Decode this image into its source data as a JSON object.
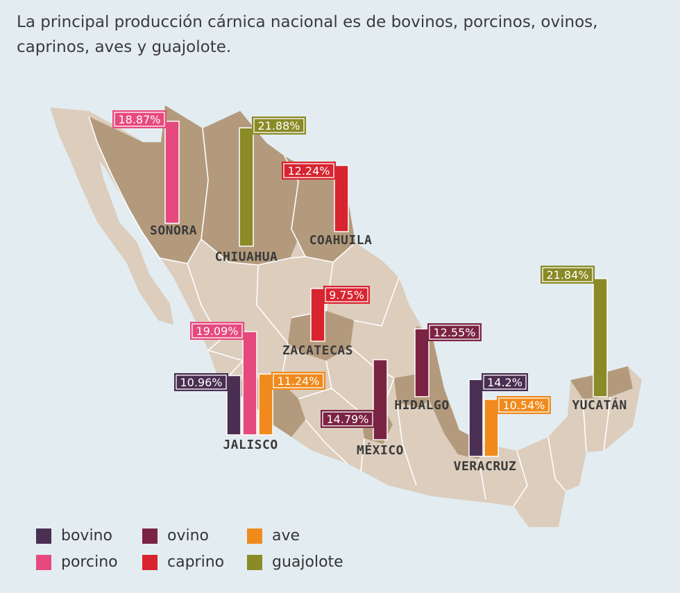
{
  "title": "La principal producción cárnica nacional es de bovinos, porcinos, ovinos, caprinos, aves y guajolote.",
  "colors": {
    "bovino": "#4a2f52",
    "ovino": "#7b2343",
    "ave": "#f08a1c",
    "porcino": "#e6497d",
    "caprino": "#d8242f",
    "guajolote": "#8a8a26",
    "land_light": "#dccdbd",
    "land_dark": "#b39a7c",
    "sea": "#e3edf1"
  },
  "legend": [
    {
      "key": "bovino",
      "label": "bovino"
    },
    {
      "key": "ovino",
      "label": "ovino"
    },
    {
      "key": "ave",
      "label": "ave"
    },
    {
      "key": "porcino",
      "label": "porcino"
    },
    {
      "key": "caprino",
      "label": "caprino"
    },
    {
      "key": "guajolote",
      "label": "guajolote"
    }
  ],
  "states": [
    {
      "name": "SONORA",
      "bars": [
        {
          "type": "porcino",
          "value": 18.87,
          "label": "18.87%"
        }
      ]
    },
    {
      "name": "CHIUAHUA",
      "bars": [
        {
          "type": "guajolote",
          "value": 21.88,
          "label": "21.88%"
        }
      ]
    },
    {
      "name": "COAHUILA",
      "bars": [
        {
          "type": "caprino",
          "value": 12.24,
          "label": "12.24%"
        }
      ]
    },
    {
      "name": "ZACATECAS",
      "bars": [
        {
          "type": "caprino",
          "value": 9.75,
          "label": "9.75%"
        }
      ]
    },
    {
      "name": "JALISCO",
      "bars": [
        {
          "type": "bovino",
          "value": 10.96,
          "label": "10.96%"
        },
        {
          "type": "porcino",
          "value": 19.09,
          "label": "19.09%"
        },
        {
          "type": "ave",
          "value": 11.24,
          "label": "11.24%"
        }
      ]
    },
    {
      "name": "MÉXICO",
      "bars": [
        {
          "type": "ovino",
          "value": 14.79,
          "label": "14.79%"
        }
      ]
    },
    {
      "name": "HIDALGO",
      "bars": [
        {
          "type": "ovino",
          "value": 12.55,
          "label": "12.55%"
        }
      ]
    },
    {
      "name": "VERACRUZ",
      "bars": [
        {
          "type": "bovino",
          "value": 14.2,
          "label": "14.2%"
        },
        {
          "type": "ave",
          "value": 10.54,
          "label": "10.54%"
        }
      ]
    },
    {
      "name": "YUCATÁN",
      "bars": [
        {
          "type": "guajolote",
          "value": 21.84,
          "label": "21.84%"
        }
      ]
    }
  ]
}
